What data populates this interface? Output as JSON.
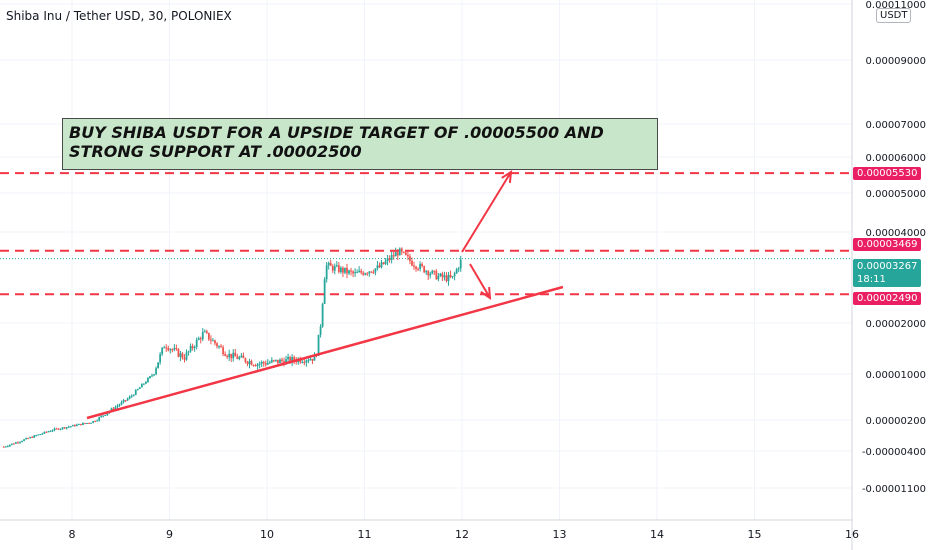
{
  "header": {
    "title": "Shiba Inu / Tether USD, 30, POLONIEX"
  },
  "annotation": {
    "text": "BUY SHIBA USDT FOR A UPSIDE TARGET OF .00005500 AND STRONG SUPPORT AT .00002500"
  },
  "currency_button": "USDT",
  "price_tags": {
    "target": {
      "label": "0.00005530",
      "color": "#e91e63"
    },
    "resistance": {
      "label": "0.00003469",
      "color": "#e91e63"
    },
    "last": {
      "label": "0.00003267",
      "countdown": "18:11",
      "color": "#26a69a"
    },
    "support": {
      "label": "0.00002490",
      "color": "#e91e63"
    }
  },
  "colors": {
    "up": "#26a69a",
    "down": "#ef5350",
    "drawing": "#f23645",
    "grid": "#f0f3fa"
  },
  "chart_data": {
    "type": "candlestick",
    "scale": "log",
    "y_ticks": [
      "0.00011000",
      "0.00009000",
      "0.00007000",
      "0.00006000",
      "0.00005000",
      "0.00004000",
      "0.00002000",
      "0.00001000",
      "0.00000200",
      "-0.00000400",
      "-0.00001100"
    ],
    "x_ticks": [
      "8",
      "9",
      "10",
      "11",
      "12",
      "13",
      "14",
      "15",
      "16"
    ],
    "levels": [
      5.53e-05,
      3.469e-05,
      2.49e-05
    ],
    "last_price": 3.267e-05,
    "series": [
      {
        "day": 7.3,
        "price": 5e-07
      },
      {
        "day": 7.8,
        "price": 1.2e-06
      },
      {
        "day": 8.2,
        "price": 1.8e-06
      },
      {
        "day": 8.6,
        "price": 4.5e-06
      },
      {
        "day": 8.95,
        "price": 1.5e-05
      },
      {
        "day": 9.15,
        "price": 1.25e-05
      },
      {
        "day": 9.35,
        "price": 1.75e-05
      },
      {
        "day": 9.6,
        "price": 1.3e-05
      },
      {
        "day": 9.9,
        "price": 1.15e-05
      },
      {
        "day": 10.2,
        "price": 1.2e-05
      },
      {
        "day": 10.5,
        "price": 1.25e-05
      },
      {
        "day": 10.6,
        "price": 3.1e-05
      },
      {
        "day": 10.9,
        "price": 2.9e-05
      },
      {
        "day": 11.15,
        "price": 3.05e-05
      },
      {
        "day": 11.35,
        "price": 3.45e-05
      },
      {
        "day": 11.5,
        "price": 3.15e-05
      },
      {
        "day": 11.75,
        "price": 2.85e-05
      },
      {
        "day": 11.9,
        "price": 2.8e-05
      },
      {
        "day": 12.0,
        "price": 3.267e-05
      }
    ]
  }
}
